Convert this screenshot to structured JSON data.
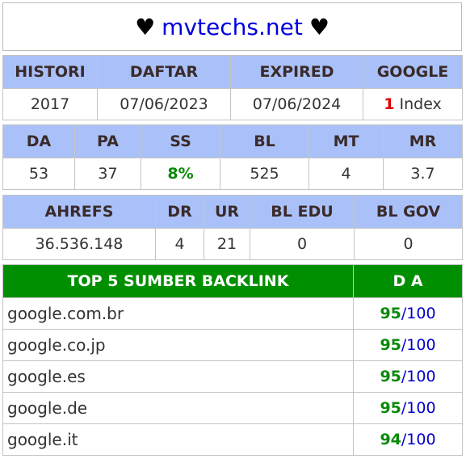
{
  "header": {
    "heart_left": "♥",
    "domain": "mvtechs.net",
    "heart_right": "♥"
  },
  "info": {
    "headers": [
      "HISTORI",
      "DAFTAR",
      "EXPIRED",
      "GOOGLE"
    ],
    "histori": "2017",
    "daftar": "07/06/2023",
    "expired": "07/06/2024",
    "google_count": "1",
    "google_label": "Index"
  },
  "metrics": {
    "headers": [
      "DA",
      "PA",
      "SS",
      "BL",
      "MT",
      "MR"
    ],
    "values": [
      "53",
      "37",
      "8%",
      "525",
      "4",
      "3.7"
    ]
  },
  "ahrefs": {
    "headers": [
      "AHREFS",
      "DR",
      "UR",
      "BL EDU",
      "BL GOV"
    ],
    "values": [
      "36.536.148",
      "4",
      "21",
      "0",
      "0"
    ]
  },
  "backlinks": {
    "header_source": "TOP 5 SUMBER BACKLINK",
    "header_da": "D A",
    "rows": [
      {
        "site": "google.com.br",
        "score": "95",
        "max": "/100"
      },
      {
        "site": "google.co.jp",
        "score": "95",
        "max": "/100"
      },
      {
        "site": "google.es",
        "score": "95",
        "max": "/100"
      },
      {
        "site": "google.de",
        "score": "95",
        "max": "/100"
      },
      {
        "site": "google.it",
        "score": "94",
        "max": "/100"
      }
    ]
  },
  "colors": {
    "header_bg": "#a9c1f8",
    "backlink_header_bg": "#008f00",
    "domain": "#0000dd",
    "highlight_green": "#0a8a0a",
    "highlight_red": "#e00000"
  }
}
